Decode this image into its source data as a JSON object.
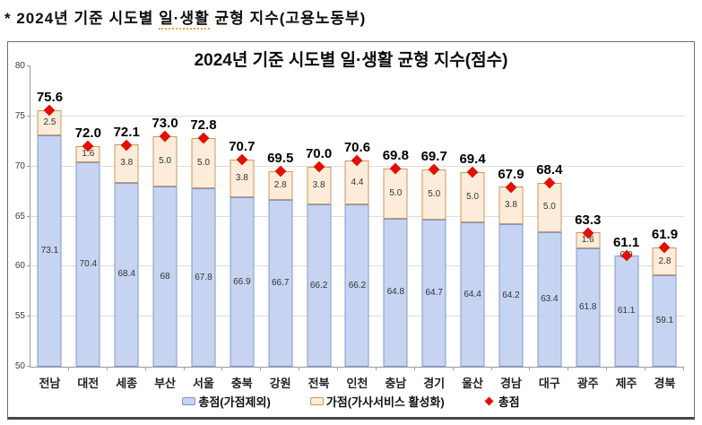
{
  "header": {
    "prefix": "* 2024년 기준 시도별 ",
    "underlined": "일·생활",
    "suffix": " 균형 지수(고용노동부)"
  },
  "chart_data": {
    "type": "bar",
    "stacked": true,
    "title": "2024년 기준 시도별 일·생활 균형 지수(점수)",
    "categories": [
      "전남",
      "대전",
      "세종",
      "부산",
      "서울",
      "충북",
      "강원",
      "전북",
      "인천",
      "충남",
      "경기",
      "울산",
      "경남",
      "대구",
      "광주",
      "제주",
      "경북"
    ],
    "series": [
      {
        "name": "총점(가점제외)",
        "values": [
          73.1,
          70.4,
          68.4,
          68,
          67.8,
          66.9,
          66.7,
          66.2,
          66.2,
          64.8,
          64.7,
          64.4,
          64.2,
          63.4,
          61.8,
          61.1,
          59.1
        ],
        "labels": [
          "73.1",
          "70.4",
          "68.4",
          "68",
          "67.8",
          "66.9",
          "66.7",
          "66.2",
          "66.2",
          "64.8",
          "64.7",
          "64.4",
          "64.2",
          "63.4",
          "61.8",
          "61.1",
          "59.1"
        ],
        "fill": "#c6d4f1",
        "border": "#8497cd"
      },
      {
        "name": "가점(가사서비스 활성화)",
        "values": [
          2.5,
          1.6,
          3.8,
          5.0,
          5.0,
          3.8,
          2.8,
          3.8,
          4.4,
          5.0,
          5.0,
          5.0,
          3.8,
          5.0,
          1.6,
          0.0,
          2.8
        ],
        "labels": [
          "2.5",
          "1.6",
          "3.8",
          "5.0",
          "5.0",
          "3.8",
          "2.8",
          "3.8",
          "4.4",
          "5.0",
          "5.0",
          "5.0",
          "3.8",
          "5.0",
          "1.6",
          "0.0",
          "2.8"
        ],
        "fill": "#fcecd9",
        "border": "#cd9660"
      }
    ],
    "totals": {
      "name": "총점",
      "marker": "diamond",
      "color": "#e11000",
      "values": [
        75.6,
        72.0,
        72.1,
        73.0,
        72.8,
        70.7,
        69.5,
        70.0,
        70.6,
        69.8,
        69.7,
        69.4,
        67.9,
        68.4,
        63.3,
        61.1,
        61.9
      ],
      "labels": [
        "75.6",
        "72.0",
        "72.1",
        "73.0",
        "72.8",
        "70.7",
        "69.5",
        "70.0",
        "70.6",
        "69.8",
        "69.7",
        "69.4",
        "67.9",
        "68.4",
        "63.3",
        "61.1",
        "61.9"
      ]
    },
    "ylim": [
      50,
      80
    ],
    "yticks": [
      50,
      55,
      60,
      65,
      70,
      75,
      80
    ],
    "grid": true,
    "legend_position": "bottom"
  }
}
